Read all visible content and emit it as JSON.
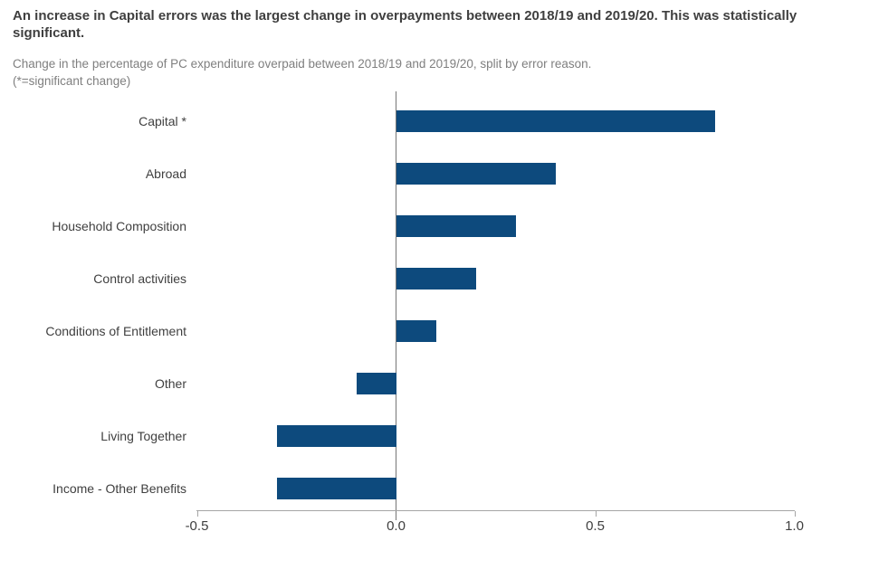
{
  "colors": {
    "bar": "#0d4a7d",
    "title_text": "#3f3f3f",
    "subtitle_text": "#7f7f7f",
    "category_label_text": "#3f3f3f",
    "tick_label_text": "#3f3f3f",
    "axis_line": "#a6a6a6",
    "zero_line": "#767676",
    "background": "#ffffff"
  },
  "chart_data": {
    "type": "bar",
    "orientation": "horizontal",
    "title": "An increase in Capital errors was the largest change in overpayments between 2018/19 and 2019/20. This was statistically significant.",
    "subtitle_line1": "Change in the percentage of PC expenditure overpaid between 2018/19 and 2019/20, split by error reason.",
    "subtitle_line2": "(*=significant change)",
    "categories": [
      "Capital *",
      "Abroad",
      "Household Composition",
      "Control activities",
      "Conditions of Entitlement",
      "Other",
      "Living Together",
      "Income - Other Benefits"
    ],
    "values": [
      0.8,
      0.4,
      0.3,
      0.2,
      0.1,
      -0.1,
      -0.3,
      -0.3
    ],
    "xlabel": "",
    "ylabel": "",
    "xlim": [
      -0.5,
      1.0
    ],
    "x_ticks": [
      -0.5,
      0.0,
      0.5,
      1.0
    ],
    "x_tick_labels": [
      "-0.5",
      "0.0",
      "0.5",
      "1.0"
    ],
    "grid": "off",
    "legend": "none",
    "significance_marker": "* = significant change"
  }
}
